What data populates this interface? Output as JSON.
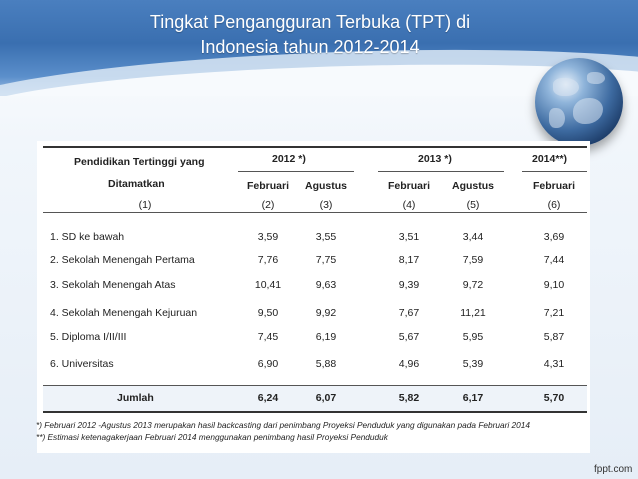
{
  "slide": {
    "title_line1": "Tingkat Pengangguran Terbuka (TPT) di",
    "title_line2": "Indonesia tahun 2012-2014",
    "brand": "fppt.com"
  },
  "table": {
    "header": {
      "col0_line1": "Pendidikan Tertinggi yang",
      "col0_line2": "Ditamatkan",
      "group_2012": "2012 *)",
      "group_2013": "2013 *)",
      "group_2014": "2014**)",
      "sub": [
        "Februari",
        "Agustus",
        "Februari",
        "Agustus",
        "Februari"
      ],
      "index": [
        "(1)",
        "(2)",
        "(3)",
        "(4)",
        "(5)",
        "(6)"
      ]
    },
    "rows": [
      {
        "label": "1. SD ke bawah",
        "v": [
          "3,59",
          "3,55",
          "3,51",
          "3,44",
          "3,69"
        ]
      },
      {
        "label": "2. Sekolah Menengah Pertama",
        "v": [
          "7,76",
          "7,75",
          "8,17",
          "7,59",
          "7,44"
        ]
      },
      {
        "label": "3. Sekolah Menengah Atas",
        "v": [
          "10,41",
          "9,63",
          "9,39",
          "9,72",
          "9,10"
        ]
      },
      {
        "label": "4. Sekolah Menengah Kejuruan",
        "v": [
          "9,50",
          "9,92",
          "7,67",
          "11,21",
          "7,21"
        ]
      },
      {
        "label": "5. Diploma I/II/III",
        "v": [
          "7,45",
          "6,19",
          "5,67",
          "5,95",
          "5,87"
        ]
      },
      {
        "label": "6. Universitas",
        "v": [
          "6,90",
          "5,88",
          "4,96",
          "5,39",
          "4,31"
        ]
      }
    ],
    "total": {
      "label": "Jumlah",
      "v": [
        "6,24",
        "6,07",
        "5,82",
        "6,17",
        "5,70"
      ]
    },
    "notes": [
      "*) Februari 2012 -Agustus 2013 merupakan hasil backcasting dari penimbang Proyeksi Penduduk yang digunakan pada Februari 2014",
      "**) Estimasi ketenagakerjaan Februari 2014 menggunakan penimbang hasil Proyeksi Penduduk"
    ]
  }
}
